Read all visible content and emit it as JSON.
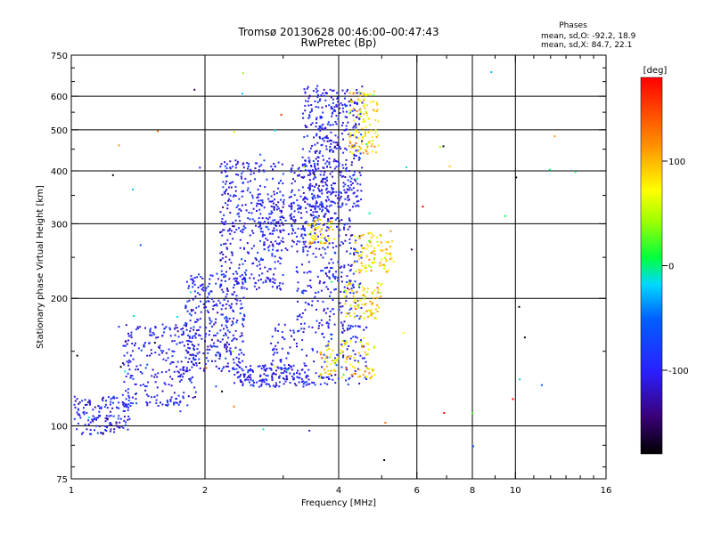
{
  "chart_data": {
    "type": "scatter",
    "title": "Tromsø 20130628 00:46:00–00:47:43",
    "subtitle": "RwPretec (Bp)",
    "xlabel": "Frequency [MHz]",
    "ylabel": "Stationary phase Virtual Height [km]",
    "x_scale": "log",
    "y_scale": "log",
    "xlim": [
      1,
      16
    ],
    "ylim": [
      75,
      750
    ],
    "grid": true,
    "x_ticks": [
      1,
      2,
      4,
      6,
      8,
      10,
      16
    ],
    "x_tick_labels": [
      "1",
      "2",
      "4",
      "6",
      "8",
      "10",
      "16"
    ],
    "x_gridlines": [
      2,
      4,
      6,
      8,
      10
    ],
    "y_ticks": [
      75,
      100,
      200,
      300,
      400,
      500,
      600,
      750
    ],
    "y_tick_labels": [
      "75",
      "100",
      "200",
      "300",
      "400",
      "500",
      "600",
      "750"
    ],
    "y_gridlines": [
      100,
      200,
      300,
      400,
      500,
      600
    ],
    "stats": {
      "header": "Phases",
      "line1": "mean, sd,O: -92.2, 18.9",
      "line2": "mean, sd,X:  84.7, 22.1"
    },
    "colorbar": {
      "label": "[deg]",
      "range": [
        -180,
        180
      ],
      "ticks": [
        100,
        0,
        -100
      ],
      "tick_labels": [
        "100",
        "0",
        "-100"
      ]
    },
    "series": [
      {
        "phase_mean": -100,
        "phase_sd": 18,
        "curve_type": "sequence",
        "clusters": [
          {
            "f": [
              1.0,
              1.35
            ],
            "h": [
              96,
              118
            ],
            "n": 150
          },
          {
            "f": [
              1.3,
              1.9
            ],
            "h": [
              112,
              175
            ],
            "n": 260
          },
          {
            "f": [
              1.8,
              2.45
            ],
            "h": [
              135,
              230
            ],
            "n": 320
          },
          {
            "f": [
              2.15,
              3.0
            ],
            "h": [
              210,
              430
            ],
            "n": 380
          },
          {
            "f": [
              2.3,
              3.4
            ],
            "h": [
              124,
              140
            ],
            "n": 150
          },
          {
            "f": [
              2.6,
              3.8
            ],
            "h": [
              260,
              350
            ],
            "n": 120
          },
          {
            "f": [
              3.1,
              4.25
            ],
            "h": [
              290,
              420
            ],
            "n": 200
          },
          {
            "f": [
              3.3,
              4.5
            ],
            "h": [
              330,
              640
            ],
            "n": 380
          },
          {
            "f": [
              3.2,
              4.5
            ],
            "h": [
              170,
              285
            ],
            "n": 230
          },
          {
            "f": [
              2.8,
              4.6
            ],
            "h": [
              125,
              175
            ],
            "n": 170
          }
        ]
      },
      {
        "phase_mean": 85,
        "phase_sd": 25,
        "curve_type": "sequence",
        "clusters": [
          {
            "f": [
              3.4,
              3.9
            ],
            "h": [
              270,
              310
            ],
            "n": 50
          },
          {
            "f": [
              4.3,
              5.3
            ],
            "h": [
              230,
              290
            ],
            "n": 100
          },
          {
            "f": [
              4.1,
              5.0
            ],
            "h": [
              180,
              220
            ],
            "n": 80
          },
          {
            "f": [
              3.6,
              4.8
            ],
            "h": [
              130,
              160
            ],
            "n": 90
          },
          {
            "f": [
              4.2,
              4.9
            ],
            "h": [
              440,
              620
            ],
            "n": 110
          }
        ]
      },
      {
        "phase_mean": 0,
        "phase_sd": 120,
        "curve_type": "sequence",
        "clusters": [
          {
            "f": [
              1.0,
              14.0
            ],
            "h": [
              80,
              700
            ],
            "n": 70
          }
        ]
      }
    ]
  }
}
